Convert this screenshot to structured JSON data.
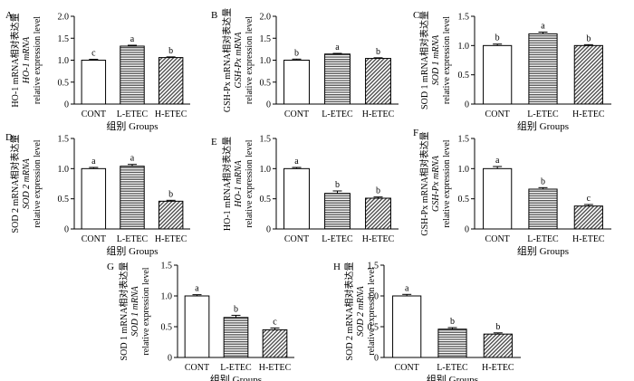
{
  "chart_data": [
    {
      "type": "bar",
      "panel_letter": "A",
      "ylabel_lines": [
        "HO-1 mRNA相对表达量",
        "HO-1 mRNA",
        "relative expression level"
      ],
      "categories": [
        "CONT",
        "L-ETEC",
        "H-ETEC"
      ],
      "values": [
        1.0,
        1.32,
        1.06
      ],
      "errors": [
        0.02,
        0.02,
        0.015
      ],
      "sig_letters": [
        "c",
        "a",
        "b"
      ],
      "xlabel": "组别 Groups",
      "ylim": [
        0,
        2.0
      ],
      "yticks": [
        "0",
        "0.5",
        "1.0",
        "1.5",
        "2.0"
      ],
      "grid": false,
      "legend": "none"
    },
    {
      "type": "bar",
      "panel_letter": "B",
      "ylabel_lines": [
        "GSH-Px mRNA相对表达量",
        "GSH-Px mRNA",
        "relative expression level"
      ],
      "categories": [
        "CONT",
        "L-ETEC",
        "H-ETEC"
      ],
      "values": [
        1.0,
        1.14,
        1.04
      ],
      "errors": [
        0.025,
        0.015,
        0.015
      ],
      "sig_letters": [
        "b",
        "a",
        "b"
      ],
      "xlabel": "",
      "ylim": [
        0,
        2.0
      ],
      "yticks": [
        "0",
        "0.5",
        "1.0",
        "1.5",
        "2.0"
      ],
      "grid": false,
      "legend": "none"
    },
    {
      "type": "bar",
      "panel_letter": "C",
      "ylabel_lines": [
        "SOD 1 mRNA相对表达量",
        "SOD 1 mRNA",
        "relative expression level"
      ],
      "categories": [
        "CONT",
        "L-ETEC",
        "H-ETEC"
      ],
      "values": [
        1.0,
        1.2,
        1.0
      ],
      "errors": [
        0.025,
        0.03,
        0.015
      ],
      "sig_letters": [
        "b",
        "a",
        "b"
      ],
      "xlabel": "组别 Groups",
      "ylim": [
        0,
        1.5
      ],
      "yticks": [
        "0",
        "0.5",
        "1.0",
        "1.5"
      ],
      "grid": false,
      "legend": "none"
    },
    {
      "type": "bar",
      "panel_letter": "D",
      "ylabel_lines": [
        "SOD 2 mRNA相对表达量",
        "SOD 2 mRNA",
        "relative expression level"
      ],
      "categories": [
        "CONT",
        "L-ETEC",
        "H-ETEC"
      ],
      "values": [
        1.0,
        1.04,
        0.46
      ],
      "errors": [
        0.02,
        0.03,
        0.015
      ],
      "sig_letters": [
        "a",
        "a",
        "b"
      ],
      "xlabel": "组别 Groups",
      "ylim": [
        0,
        1.5
      ],
      "yticks": [
        "0",
        "0.5",
        "1.0",
        "1.5"
      ],
      "grid": false,
      "legend": "none"
    },
    {
      "type": "bar",
      "panel_letter": "E",
      "ylabel_lines": [
        "HO-1 mRNA相对表达量",
        "HO-1 mRNA",
        "relative expression level"
      ],
      "categories": [
        "CONT",
        "L-ETEC",
        "H-ETEC"
      ],
      "values": [
        1.0,
        0.59,
        0.51
      ],
      "errors": [
        0.02,
        0.04,
        0.02
      ],
      "sig_letters": [
        "a",
        "b",
        "b"
      ],
      "xlabel": "",
      "ylim": [
        0,
        1.5
      ],
      "yticks": [
        "0",
        "0.5",
        "1.0",
        "1.5"
      ],
      "grid": false,
      "legend": "none"
    },
    {
      "type": "bar",
      "panel_letter": "F",
      "ylabel_lines": [
        "GSH-Px mRNA相对表达量",
        "GSH-Px mRNA",
        "relative expression level"
      ],
      "categories": [
        "CONT",
        "L-ETEC",
        "H-ETEC"
      ],
      "values": [
        1.0,
        0.66,
        0.38
      ],
      "errors": [
        0.035,
        0.025,
        0.025
      ],
      "sig_letters": [
        "a",
        "b",
        "c"
      ],
      "xlabel": "组别 Groups",
      "ylim": [
        0,
        1.5
      ],
      "yticks": [
        "0",
        "0.5",
        "1.0",
        "1.5"
      ],
      "grid": false,
      "legend": "none"
    },
    {
      "type": "bar",
      "panel_letter": "G",
      "ylabel_lines": [
        "SOD 1 mRNA相对表达量",
        "SOD 1 mRNA",
        "relative expression level"
      ],
      "categories": [
        "CONT",
        "L-ETEC",
        "H-ETEC"
      ],
      "values": [
        1.0,
        0.65,
        0.45
      ],
      "errors": [
        0.02,
        0.035,
        0.03
      ],
      "sig_letters": [
        "a",
        "b",
        "c"
      ],
      "xlabel": "组别 Groups",
      "ylim": [
        0,
        1.5
      ],
      "yticks": [
        "0",
        "0.5",
        "1.0",
        "1.5"
      ],
      "grid": false,
      "legend": "none"
    },
    {
      "type": "bar",
      "panel_letter": "H",
      "ylabel_lines": [
        "SOD 2 mRNA相对表达量",
        "SOD 2 mRNA",
        "relative expression level"
      ],
      "categories": [
        "CONT",
        "L-ETEC",
        "H-ETEC"
      ],
      "values": [
        1.0,
        0.46,
        0.38
      ],
      "errors": [
        0.025,
        0.025,
        0.02
      ],
      "sig_letters": [
        "a",
        "b",
        "b"
      ],
      "xlabel": "组别 Groups",
      "ylim": [
        0,
        1.5
      ],
      "yticks": [
        "0",
        "0.5",
        "1.0",
        "1.5"
      ],
      "grid": false,
      "legend": "none"
    }
  ]
}
